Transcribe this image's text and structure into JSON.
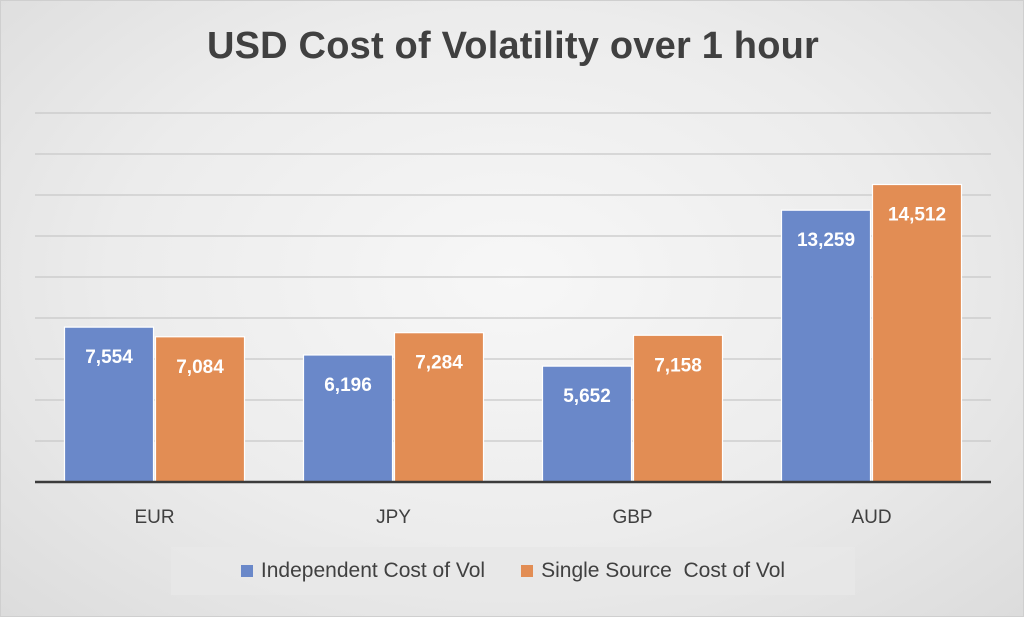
{
  "chart_data": {
    "type": "bar",
    "title": "USD Cost of Volatility over 1 hour",
    "categories": [
      "EUR",
      "JPY",
      "GBP",
      "AUD"
    ],
    "series": [
      {
        "name": "Independent Cost of Vol",
        "color": "#6a88c9",
        "values": [
          7554,
          6196,
          5652,
          13259
        ],
        "labels": [
          "7,554",
          "6,196",
          "5,652",
          "13,259"
        ]
      },
      {
        "name": "Single Source  Cost of Vol",
        "color": "#e28d54",
        "values": [
          7084,
          7284,
          7158,
          14512
        ],
        "labels": [
          "7,084",
          "7,284",
          "7,158",
          "14,512"
        ]
      }
    ],
    "xlabel": "",
    "ylabel": "",
    "ylim": [
      0,
      18000
    ],
    "grid": true,
    "legend_position": "bottom"
  }
}
